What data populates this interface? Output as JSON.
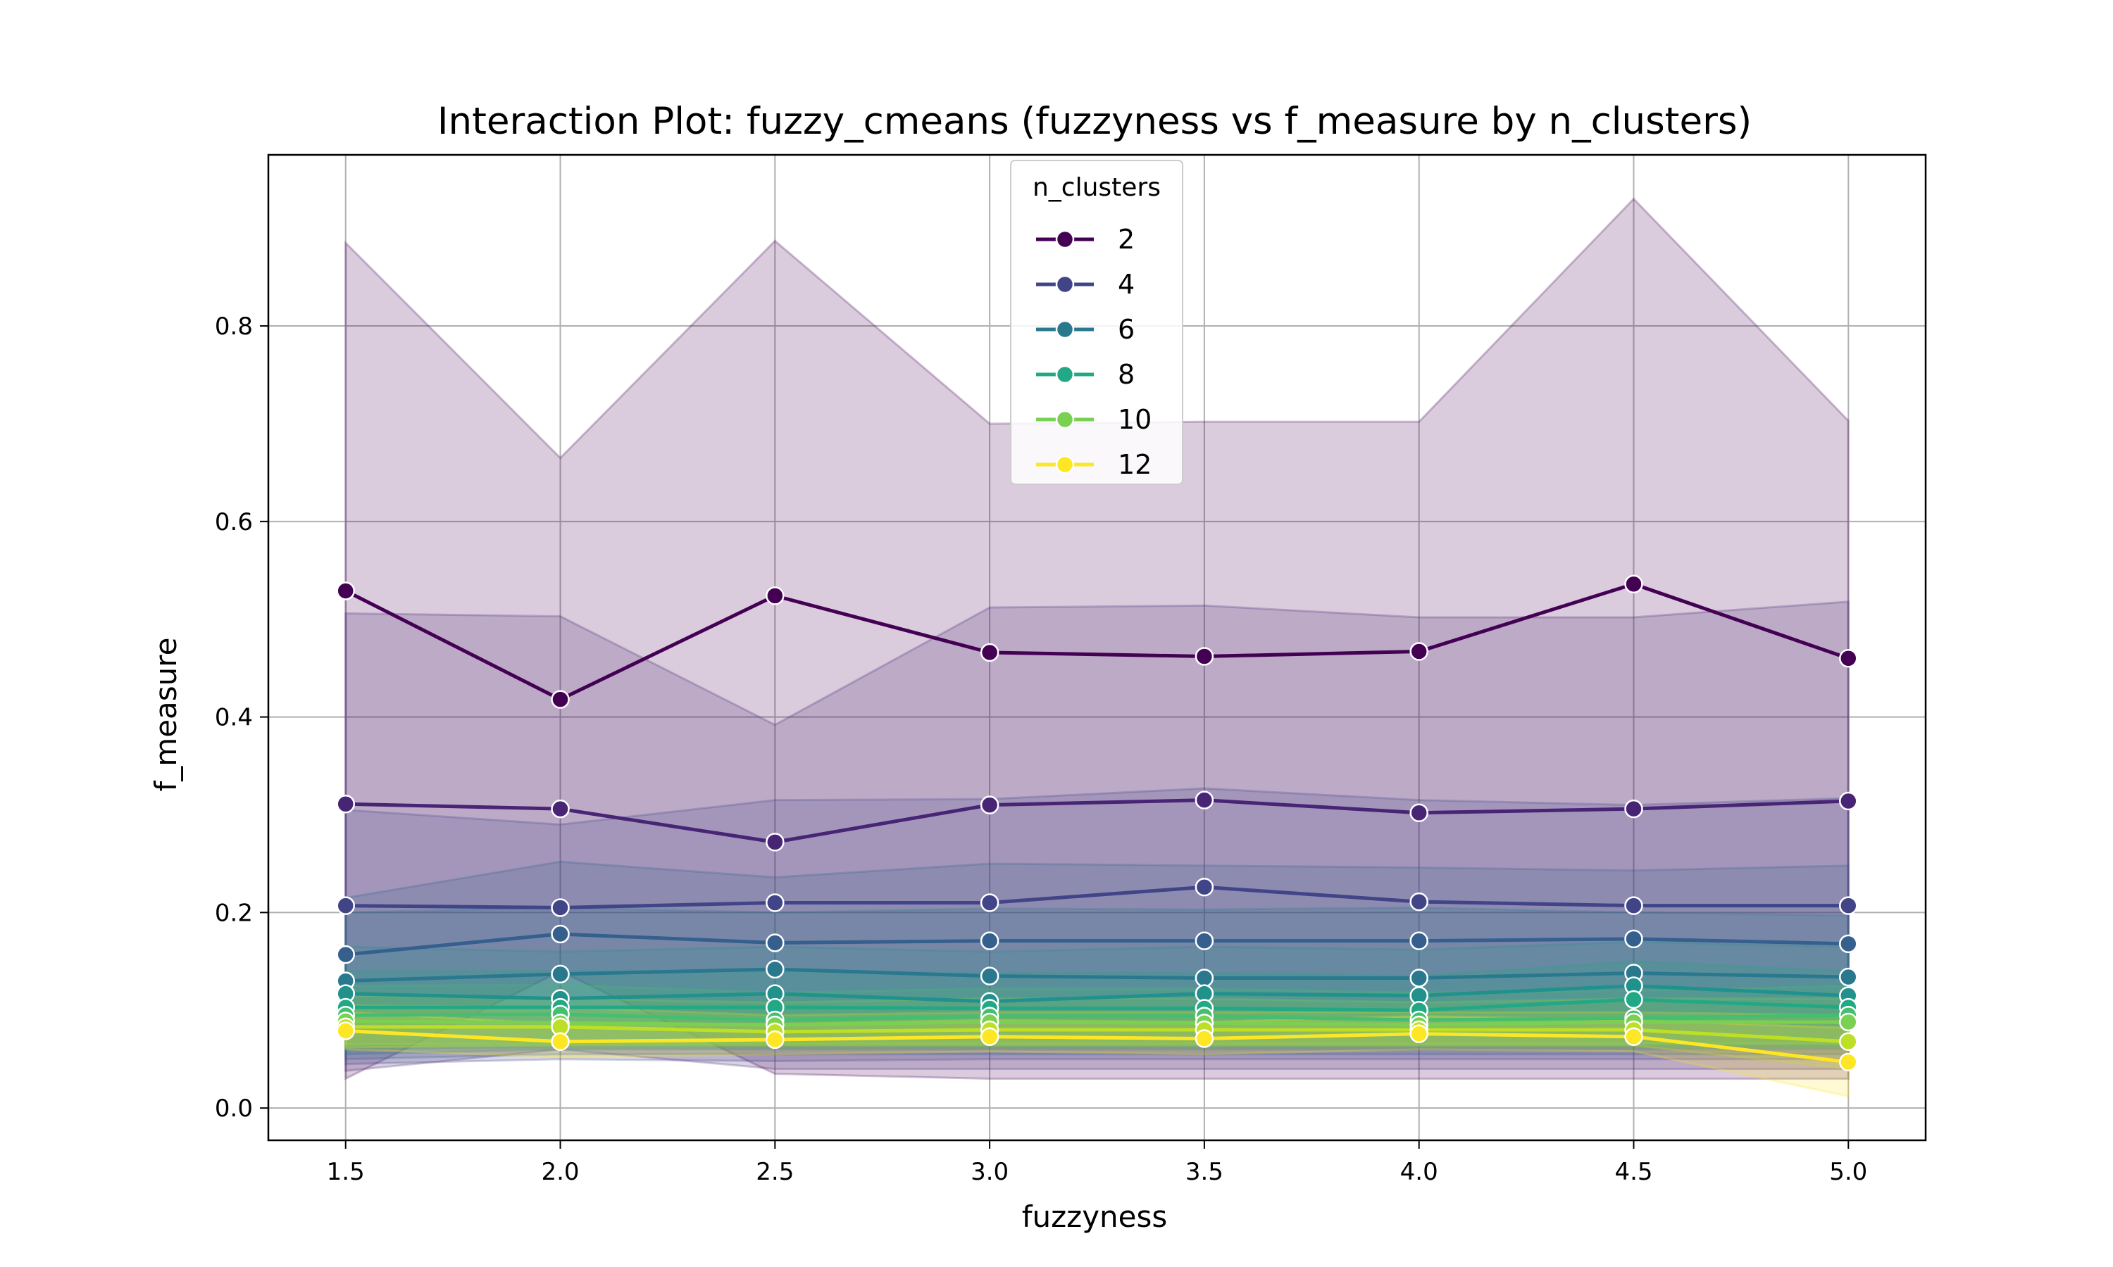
{
  "chart_data": {
    "type": "line",
    "title": "Interaction Plot: fuzzy_cmeans (fuzzyness vs f_measure by n_clusters)",
    "xlabel": "fuzzyness",
    "ylabel": "f_measure",
    "x": [
      1.5,
      2.0,
      2.5,
      3.0,
      3.5,
      4.0,
      4.5,
      5.0
    ],
    "x_tick_labels": [
      "1.5",
      "2.0",
      "2.5",
      "3.0",
      "3.5",
      "4.0",
      "4.5",
      "5.0"
    ],
    "y_ticks": [
      0.0,
      0.2,
      0.4,
      0.6,
      0.8
    ],
    "y_tick_labels": [
      "0.0",
      "0.2",
      "0.4",
      "0.6",
      "0.8"
    ],
    "xlim": [
      1.32,
      5.18
    ],
    "ylim": [
      -0.033,
      0.975
    ],
    "grid": true,
    "legend": {
      "title": "n_clusters",
      "position": "top-center"
    },
    "series": [
      {
        "name": "2",
        "color": "#440154",
        "values": [
          0.529,
          0.418,
          0.524,
          0.466,
          0.462,
          0.467,
          0.536,
          0.46
        ],
        "lower": [
          0.03,
          0.14,
          0.035,
          0.03,
          0.03,
          0.03,
          0.03,
          0.03
        ],
        "upper": [
          0.885,
          0.665,
          0.887,
          0.7,
          0.702,
          0.702,
          0.93,
          0.703
        ]
      },
      {
        "name": "",
        "color": "#482475",
        "values": [
          0.311,
          0.306,
          0.272,
          0.31,
          0.315,
          0.302,
          0.306,
          0.314
        ],
        "lower": [
          0.038,
          0.06,
          0.04,
          0.04,
          0.04,
          0.04,
          0.04,
          0.04
        ],
        "upper": [
          0.506,
          0.503,
          0.392,
          0.512,
          0.514,
          0.502,
          0.502,
          0.518
        ]
      },
      {
        "name": "4",
        "color": "#414487",
        "values": [
          0.207,
          0.205,
          0.21,
          0.21,
          0.226,
          0.211,
          0.207,
          0.207
        ],
        "lower": [
          0.045,
          0.05,
          0.048,
          0.05,
          0.05,
          0.05,
          0.05,
          0.05
        ],
        "upper": [
          0.305,
          0.29,
          0.315,
          0.316,
          0.327,
          0.315,
          0.31,
          0.317
        ]
      },
      {
        "name": "",
        "color": "#355f8d",
        "values": [
          0.157,
          0.178,
          0.169,
          0.171,
          0.171,
          0.171,
          0.173,
          0.168
        ],
        "lower": [
          0.05,
          0.055,
          0.055,
          0.055,
          0.055,
          0.055,
          0.055,
          0.055
        ],
        "upper": [
          0.215,
          0.252,
          0.236,
          0.25,
          0.248,
          0.246,
          0.243,
          0.248
        ]
      },
      {
        "name": "6",
        "color": "#2a788e",
        "values": [
          0.13,
          0.137,
          0.142,
          0.135,
          0.133,
          0.133,
          0.138,
          0.134
        ],
        "lower": [
          0.055,
          0.06,
          0.06,
          0.06,
          0.06,
          0.06,
          0.06,
          0.06
        ],
        "upper": [
          0.2,
          0.205,
          0.2,
          0.204,
          0.203,
          0.205,
          0.2,
          0.197
        ]
      },
      {
        "name": "",
        "color": "#21918c",
        "values": [
          0.117,
          0.112,
          0.117,
          0.109,
          0.117,
          0.115,
          0.125,
          0.115
        ],
        "lower": [
          0.06,
          0.062,
          0.062,
          0.062,
          0.062,
          0.062,
          0.062,
          0.062
        ],
        "upper": [
          0.165,
          0.16,
          0.165,
          0.16,
          0.165,
          0.162,
          0.17,
          0.165
        ]
      },
      {
        "name": "8",
        "color": "#22a884",
        "values": [
          0.103,
          0.103,
          0.103,
          0.102,
          0.102,
          0.1,
          0.111,
          0.103
        ],
        "lower": [
          0.062,
          0.064,
          0.064,
          0.064,
          0.064,
          0.064,
          0.064,
          0.064
        ],
        "upper": [
          0.14,
          0.14,
          0.14,
          0.138,
          0.138,
          0.135,
          0.15,
          0.14
        ]
      },
      {
        "name": "",
        "color": "#44bf70",
        "values": [
          0.095,
          0.096,
          0.09,
          0.094,
          0.094,
          0.09,
          0.092,
          0.095
        ],
        "lower": [
          0.065,
          0.066,
          0.066,
          0.066,
          0.066,
          0.066,
          0.066,
          0.066
        ],
        "upper": [
          0.125,
          0.126,
          0.118,
          0.122,
          0.122,
          0.118,
          0.12,
          0.125
        ]
      },
      {
        "name": "10",
        "color": "#7ad151",
        "values": [
          0.089,
          0.087,
          0.085,
          0.088,
          0.087,
          0.085,
          0.088,
          0.088
        ],
        "lower": [
          0.065,
          0.066,
          0.066,
          0.066,
          0.066,
          0.066,
          0.066,
          0.066
        ],
        "upper": [
          0.115,
          0.112,
          0.108,
          0.112,
          0.112,
          0.108,
          0.112,
          0.112
        ]
      },
      {
        "name": "",
        "color": "#bddf26",
        "values": [
          0.083,
          0.083,
          0.078,
          0.08,
          0.08,
          0.08,
          0.08,
          0.068
        ],
        "lower": [
          0.062,
          0.064,
          0.064,
          0.064,
          0.064,
          0.064,
          0.064,
          0.04
        ],
        "upper": [
          0.105,
          0.103,
          0.095,
          0.098,
          0.098,
          0.098,
          0.098,
          0.095
        ]
      },
      {
        "name": "12",
        "color": "#fde725",
        "values": [
          0.079,
          0.068,
          0.07,
          0.073,
          0.071,
          0.076,
          0.073,
          0.047
        ],
        "lower": [
          0.06,
          0.052,
          0.055,
          0.058,
          0.055,
          0.06,
          0.058,
          0.012
        ],
        "upper": [
          0.098,
          0.086,
          0.086,
          0.09,
          0.088,
          0.094,
          0.09,
          0.082
        ]
      }
    ]
  }
}
